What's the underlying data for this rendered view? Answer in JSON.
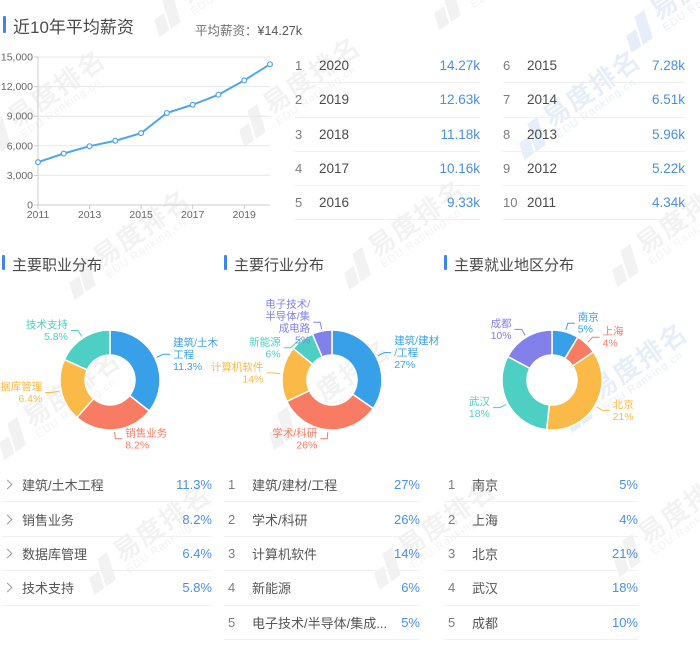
{
  "colors": {
    "accent": "#3d86f0",
    "value_blue": "#4a90e2",
    "line_blue": "#4da6ea",
    "axis_text": "#666666",
    "grid_line": "#e8e8e8",
    "pie_palette": {
      "blue": "#38a0e9",
      "red": "#f87c64",
      "orange": "#fbba47",
      "teal": "#4dcfc4",
      "purple": "#8280ea"
    }
  },
  "watermark": {
    "cn": "易度排名",
    "en": "EDU Ranking.cn"
  },
  "salary": {
    "title": "近10年平均薪资",
    "avg_label": "平均薪资：",
    "avg_value": "¥14.27k",
    "rank_table": {
      "left": [
        {
          "rank": "1",
          "year": "2020",
          "value": "14.27k"
        },
        {
          "rank": "2",
          "year": "2019",
          "value": "12.63k"
        },
        {
          "rank": "3",
          "year": "2018",
          "value": "11.18k"
        },
        {
          "rank": "4",
          "year": "2017",
          "value": "10.16k"
        },
        {
          "rank": "5",
          "year": "2016",
          "value": "9.33k"
        }
      ],
      "right": [
        {
          "rank": "6",
          "year": "2015",
          "value": "7.28k"
        },
        {
          "rank": "7",
          "year": "2014",
          "value": "6.51k"
        },
        {
          "rank": "8",
          "year": "2013",
          "value": "5.96k"
        },
        {
          "rank": "9",
          "year": "2012",
          "value": "5.22k"
        },
        {
          "rank": "10",
          "year": "2011",
          "value": "4.34k"
        }
      ]
    }
  },
  "sections": {
    "occupation": {
      "title": "主要职业分布",
      "rows": [
        {
          "label": "建筑/土木工程",
          "value": "11.3%"
        },
        {
          "label": "销售业务",
          "value": "8.2%"
        },
        {
          "label": "数据库管理",
          "value": "6.4%"
        },
        {
          "label": "技术支持",
          "value": "5.8%"
        }
      ]
    },
    "industry": {
      "title": "主要行业分布",
      "rows": [
        {
          "rank": "1",
          "label": "建筑/建材/工程",
          "value": "27%"
        },
        {
          "rank": "2",
          "label": "学术/科研",
          "value": "26%"
        },
        {
          "rank": "3",
          "label": "计算机软件",
          "value": "14%"
        },
        {
          "rank": "4",
          "label": "新能源",
          "value": "6%"
        },
        {
          "rank": "5",
          "label": "电子技术/半导体/集成...",
          "value": "5%"
        }
      ]
    },
    "region": {
      "title": "主要就业地区分布",
      "rows": [
        {
          "rank": "1",
          "label": "南京",
          "value": "5%"
        },
        {
          "rank": "2",
          "label": "上海",
          "value": "4%"
        },
        {
          "rank": "3",
          "label": "北京",
          "value": "21%"
        },
        {
          "rank": "4",
          "label": "武汉",
          "value": "18%"
        },
        {
          "rank": "5",
          "label": "成都",
          "value": "10%"
        }
      ]
    }
  },
  "chart_data": [
    {
      "id": "salary_trend",
      "type": "line",
      "title": "近10年平均薪资",
      "x": [
        2011,
        2012,
        2013,
        2014,
        2015,
        2016,
        2017,
        2018,
        2019,
        2020
      ],
      "values": [
        4340,
        5220,
        5960,
        6510,
        7280,
        9330,
        10160,
        11180,
        12630,
        14270
      ],
      "ylim": [
        0,
        15000
      ],
      "yticks": [
        0,
        3000,
        6000,
        9000,
        12000,
        15000
      ],
      "ytick_labels": [
        "0",
        "3,000",
        "6,000",
        "9,000",
        "12,000",
        "15,000"
      ],
      "xtick_labels": [
        "2011",
        "2013",
        "2015",
        "2017",
        "2019"
      ],
      "grid": "horizontal",
      "legend": "none",
      "annotation": "平均薪资：¥14.27k"
    },
    {
      "id": "occupation",
      "type": "pie",
      "title": "主要职业分布",
      "labels": [
        "建筑/土木工程",
        "销售业务",
        "数据库管理",
        "技术支持"
      ],
      "values": [
        11.3,
        8.2,
        6.4,
        5.8
      ],
      "unit": "%",
      "colors": [
        "blue",
        "red",
        "orange",
        "teal"
      ],
      "label_lines": [
        [
          "建筑/土木",
          "工程",
          "11.3%"
        ],
        [
          "销售业务",
          "8.2%"
        ],
        [
          "数据库管理",
          "6.4%"
        ],
        [
          "技术支持",
          "5.8%"
        ]
      ]
    },
    {
      "id": "industry",
      "type": "pie",
      "title": "主要行业分布",
      "labels": [
        "建筑/建材/工程",
        "学术/科研",
        "计算机软件",
        "新能源",
        "电子技术/半导体/集成电路"
      ],
      "values": [
        27,
        26,
        14,
        6,
        5
      ],
      "unit": "%",
      "colors": [
        "blue",
        "red",
        "orange",
        "teal",
        "purple"
      ],
      "label_lines": [
        [
          "建筑/建材",
          "/工程",
          "27%"
        ],
        [
          "学术/科研",
          "26%"
        ],
        [
          "计算机软件",
          "14%"
        ],
        [
          "新能源",
          "6%"
        ],
        [
          "电子技术/",
          "半导体/集",
          "成电路",
          "5%"
        ]
      ]
    },
    {
      "id": "region",
      "type": "pie",
      "title": "主要就业地区分布",
      "labels": [
        "南京",
        "上海",
        "北京",
        "武汉",
        "成都"
      ],
      "values": [
        5,
        4,
        21,
        18,
        10
      ],
      "unit": "%",
      "colors": [
        "blue",
        "red",
        "orange",
        "teal",
        "purple"
      ],
      "label_lines": [
        [
          "南京",
          "5%"
        ],
        [
          "上海",
          "4%"
        ],
        [
          "北京",
          "21%"
        ],
        [
          "武汉",
          "18%"
        ],
        [
          "成都",
          "10%"
        ]
      ]
    }
  ]
}
